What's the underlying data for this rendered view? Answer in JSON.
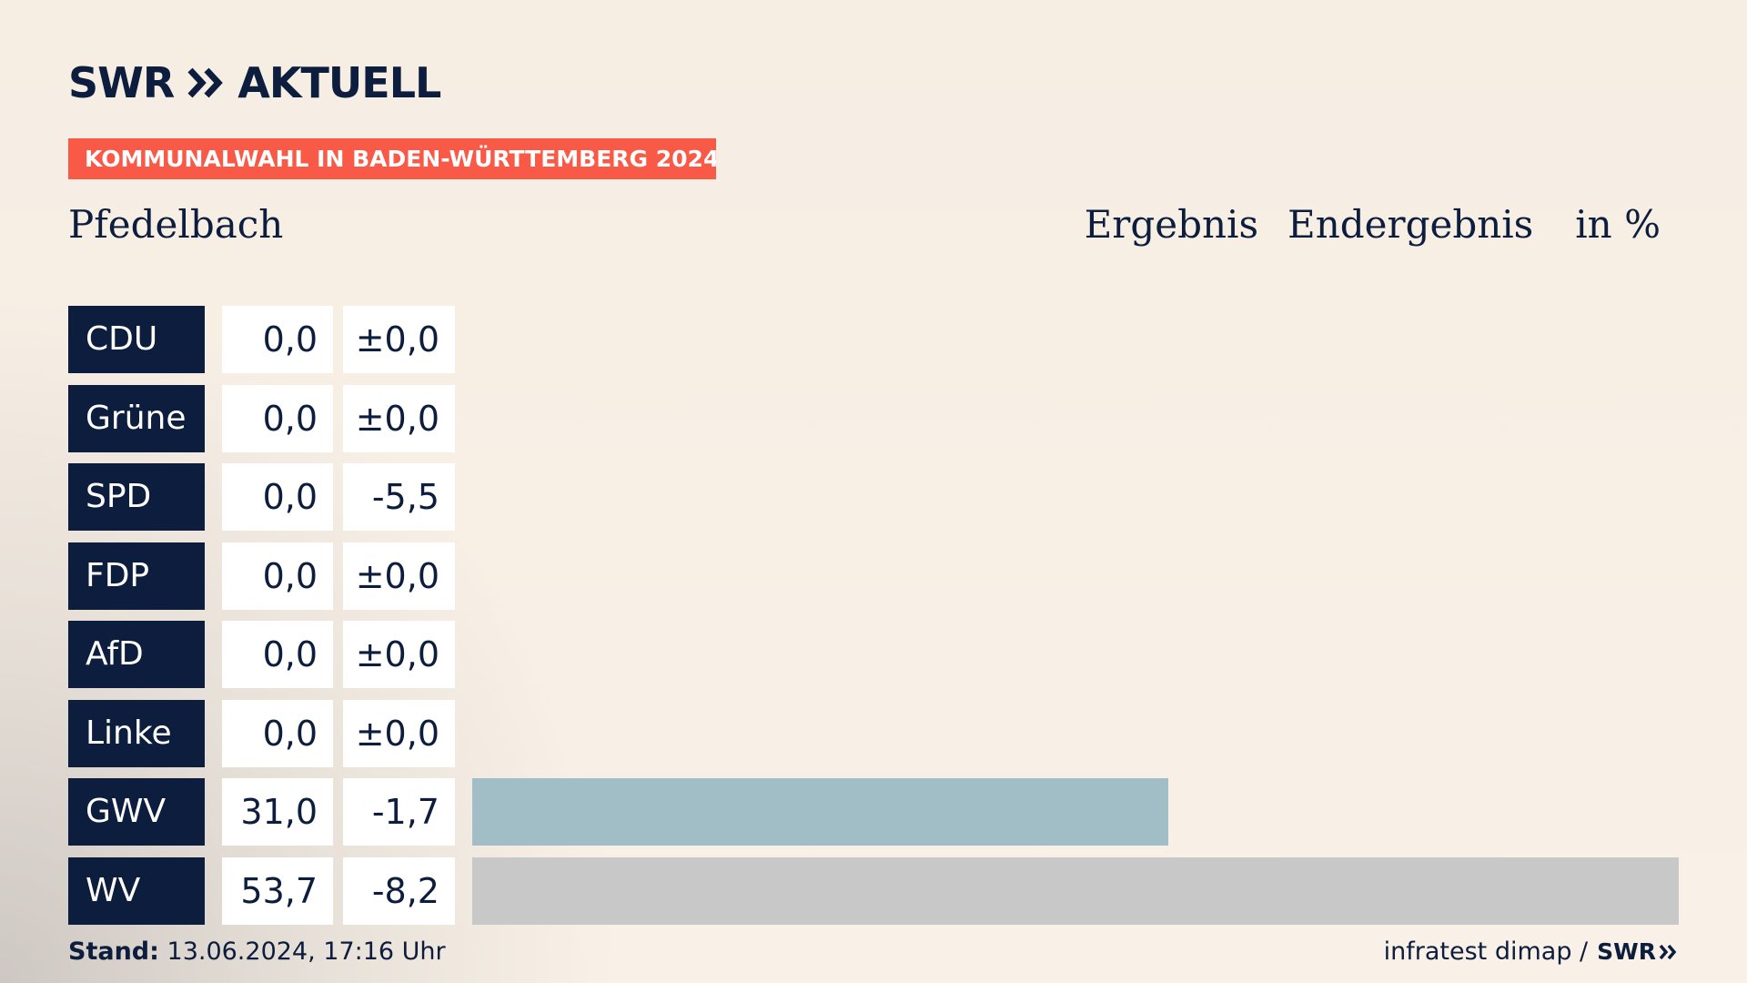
{
  "brand": {
    "logo_text": "SWR",
    "logo_suffix": "AKTUELL"
  },
  "banner": "KOMMUNALWAHL IN BADEN-WÜRTTEMBERG 2024",
  "place": "Pfedelbach",
  "headline": {
    "result_label": "Ergebnis",
    "status_label": "Endergebnis",
    "unit_label": "in %"
  },
  "colors": {
    "party_box": "#0c1d3d",
    "banner": "#f85a47",
    "GWV": "#a1bec7",
    "WV": "#c8c8c8"
  },
  "chart_data": {
    "type": "bar",
    "orientation": "horizontal",
    "categories": [
      "CDU",
      "Grüne",
      "SPD",
      "FDP",
      "AfD",
      "Linke",
      "GWV",
      "WV"
    ],
    "series": [
      {
        "values": [
          0.0,
          0.0,
          0.0,
          0.0,
          0.0,
          0.0,
          31.0,
          53.7
        ]
      }
    ],
    "value_labels": [
      "0,0",
      "0,0",
      "0,0",
      "0,0",
      "0,0",
      "0,0",
      "31,0",
      "53,7"
    ],
    "diff_labels": [
      "±0,0",
      "±0,0",
      "-5,5",
      "±0,0",
      "±0,0",
      "±0,0",
      "-1,7",
      "-8,2"
    ],
    "diff_values": [
      0.0,
      0.0,
      -5.5,
      0.0,
      0.0,
      0.0,
      -1.7,
      -8.2
    ],
    "bar_colors": [
      "#a1bec7",
      "#a1bec7",
      "#a1bec7",
      "#a1bec7",
      "#a1bec7",
      "#a1bec7",
      "#a1bec7",
      "#c8c8c8"
    ],
    "xlim": [
      0,
      53.7
    ],
    "grid": false,
    "legend": "none"
  },
  "footer": {
    "stand_label": "Stand:",
    "stand_value": "13.06.2024, 17:16 Uhr",
    "source": "infratest dimap /",
    "source_logo": "SWR"
  }
}
